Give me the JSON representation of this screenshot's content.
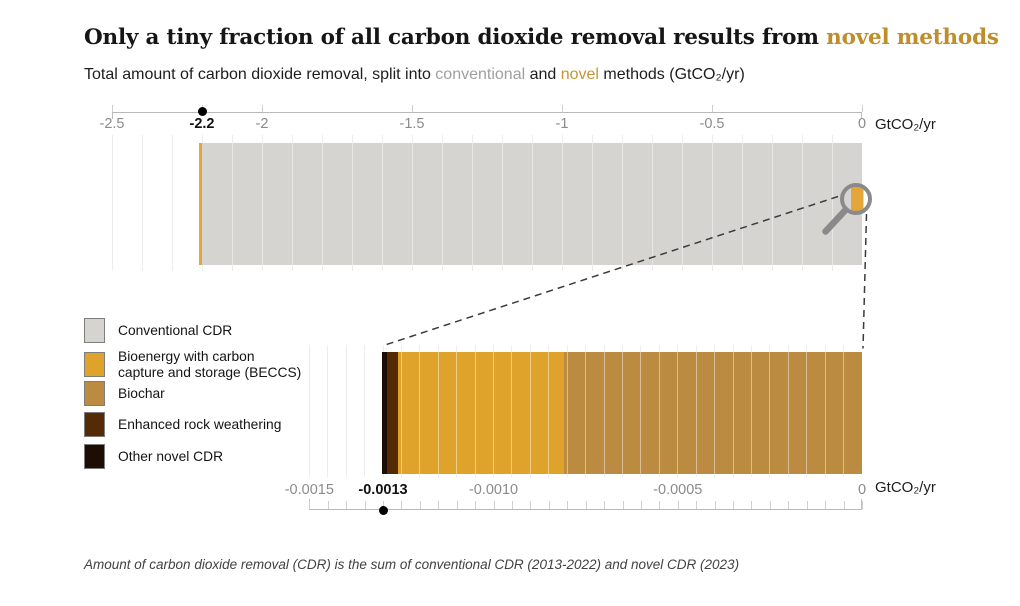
{
  "header": {
    "title_prefix": "Only a tiny fraction of all carbon dioxide removal results from ",
    "title_highlight": "novel methods",
    "subtitle_prefix": "Total amount of carbon dioxide removal, split into ",
    "subtitle_conventional": "conventional",
    "subtitle_and": " and ",
    "subtitle_novel": "novel",
    "subtitle_suffix": " methods (GtCO₂/yr)"
  },
  "footnote": "Amount of carbon dioxide removal (CDR) is the sum of conventional CDR (2013-2022) and novel CDR (2023)",
  "colors": {
    "title_highlight": "#bf8e2c",
    "subtitle_gray": "#9f9f9d",
    "subtitle_gold": "#c79536",
    "conventional": "#d5d4d1",
    "beccs": "#dfa32b",
    "biochar": "#bb8b41",
    "enhanced_rock_weathering": "#552a07",
    "other_novel": "#1c0e04",
    "axis_line": "#b9b9b9",
    "grid": "#ededed",
    "tick_label": "#8b8b8b",
    "magnifier": "#8a8a8a",
    "connector": "#3b3b3b"
  },
  "legend": {
    "items": [
      {
        "key": "conventional-cdr",
        "label_lines": [
          "Conventional CDR"
        ],
        "color": "#d5d4d1"
      },
      {
        "key": "beccs",
        "label_lines": [
          "Bioenergy with carbon",
          "capture and storage (BECCS)"
        ],
        "color": "#dfa32b"
      },
      {
        "key": "biochar",
        "label_lines": [
          "Biochar"
        ],
        "color": "#bb8b41"
      },
      {
        "key": "enhanced-rock-weathering",
        "label_lines": [
          "Enhanced rock weathering"
        ],
        "color": "#552a07"
      },
      {
        "key": "other-novel-cdr",
        "label_lines": [
          "Other novel CDR"
        ],
        "color": "#1c0e04"
      }
    ]
  },
  "chart_data": [
    {
      "type": "bar",
      "name": "total-cdr-bar",
      "orientation": "horizontal",
      "unit": "GtCO₂/yr",
      "xlim": [
        -2.5,
        0
      ],
      "ticks": [
        {
          "value": -2.5,
          "label": "-2.5",
          "highlight": false
        },
        {
          "value": -2.2,
          "label": "-2.2",
          "highlight": true
        },
        {
          "value": -2.0,
          "label": "-2",
          "highlight": false
        },
        {
          "value": -1.5,
          "label": "-1.5",
          "highlight": false
        },
        {
          "value": -1.0,
          "label": "-1",
          "highlight": false
        },
        {
          "value": -0.5,
          "label": "-0.5",
          "highlight": false
        },
        {
          "value": 0,
          "label": "0",
          "highlight": false
        }
      ],
      "minor_tick_step": 0.1,
      "marker_value": -2.2,
      "series": [
        {
          "name": "Conventional CDR",
          "value": 2.2,
          "color": "#d5d4d1"
        },
        {
          "name": "Novel CDR",
          "value": 0.0013,
          "color": "#e2a63a"
        }
      ],
      "grid": true,
      "annotations": [
        "magnifier over novel sliver at right end of bar"
      ]
    },
    {
      "type": "bar",
      "name": "novel-cdr-zoom-bar",
      "orientation": "horizontal",
      "unit": "GtCO₂/yr",
      "xlim": [
        -0.0015,
        0
      ],
      "ticks": [
        {
          "value": -0.0015,
          "label": "-0.0015",
          "highlight": false
        },
        {
          "value": -0.0013,
          "label": "-0.0013",
          "highlight": true
        },
        {
          "value": -0.001,
          "label": "-0.0010",
          "highlight": false
        },
        {
          "value": -0.0005,
          "label": "-0.0005",
          "highlight": false
        },
        {
          "value": 0,
          "label": "0",
          "highlight": false
        }
      ],
      "minor_tick_step": 5e-05,
      "marker_value": -0.0013,
      "series": [
        {
          "name": "Biochar",
          "value": 0.00081,
          "color": "#bb8b41"
        },
        {
          "name": "Bioenergy with carbon capture and storage (BECCS)",
          "value": 0.00045,
          "color": "#dfa32b"
        },
        {
          "name": "Enhanced rock weathering",
          "value": 3e-05,
          "color": "#552a07"
        },
        {
          "name": "Other novel CDR",
          "value": 1.4e-05,
          "color": "#1c0e04"
        }
      ],
      "grid": true
    }
  ]
}
